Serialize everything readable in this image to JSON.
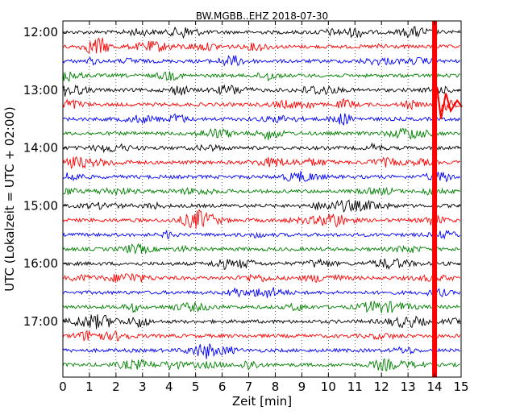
{
  "chart_data": {
    "type": "line",
    "title": "BW.MGBB..EHZ 2018-07-30",
    "xlabel": "Zeit  [min]",
    "ylabel": "UTC (Lokalzeit = UTC + 02:00)",
    "xlim": [
      0,
      15
    ],
    "x_ticks": [
      "0",
      "1",
      "2",
      "3",
      "4",
      "5",
      "6",
      "7",
      "8",
      "9",
      "10",
      "11",
      "12",
      "13",
      "14",
      "15"
    ],
    "y_ticks": [
      "12:00",
      "13:00",
      "14:00",
      "15:00",
      "16:00",
      "17:00"
    ],
    "grid": "vertical dotted",
    "trace_colors": [
      "#000000",
      "#ff0000",
      "#0000ff",
      "#008000"
    ],
    "trace_start_times": [
      "12:00",
      "12:15",
      "12:30",
      "12:45",
      "13:00",
      "13:15",
      "13:30",
      "13:45",
      "14:00",
      "14:15",
      "14:30",
      "14:45",
      "15:00",
      "15:15",
      "15:30",
      "15:45",
      "16:00",
      "16:15",
      "16:30",
      "16:45",
      "17:00",
      "17:15",
      "17:30",
      "17:45"
    ],
    "event": {
      "time_min": 14.0,
      "color": "#ff0000",
      "first_trace": "13:15"
    }
  }
}
